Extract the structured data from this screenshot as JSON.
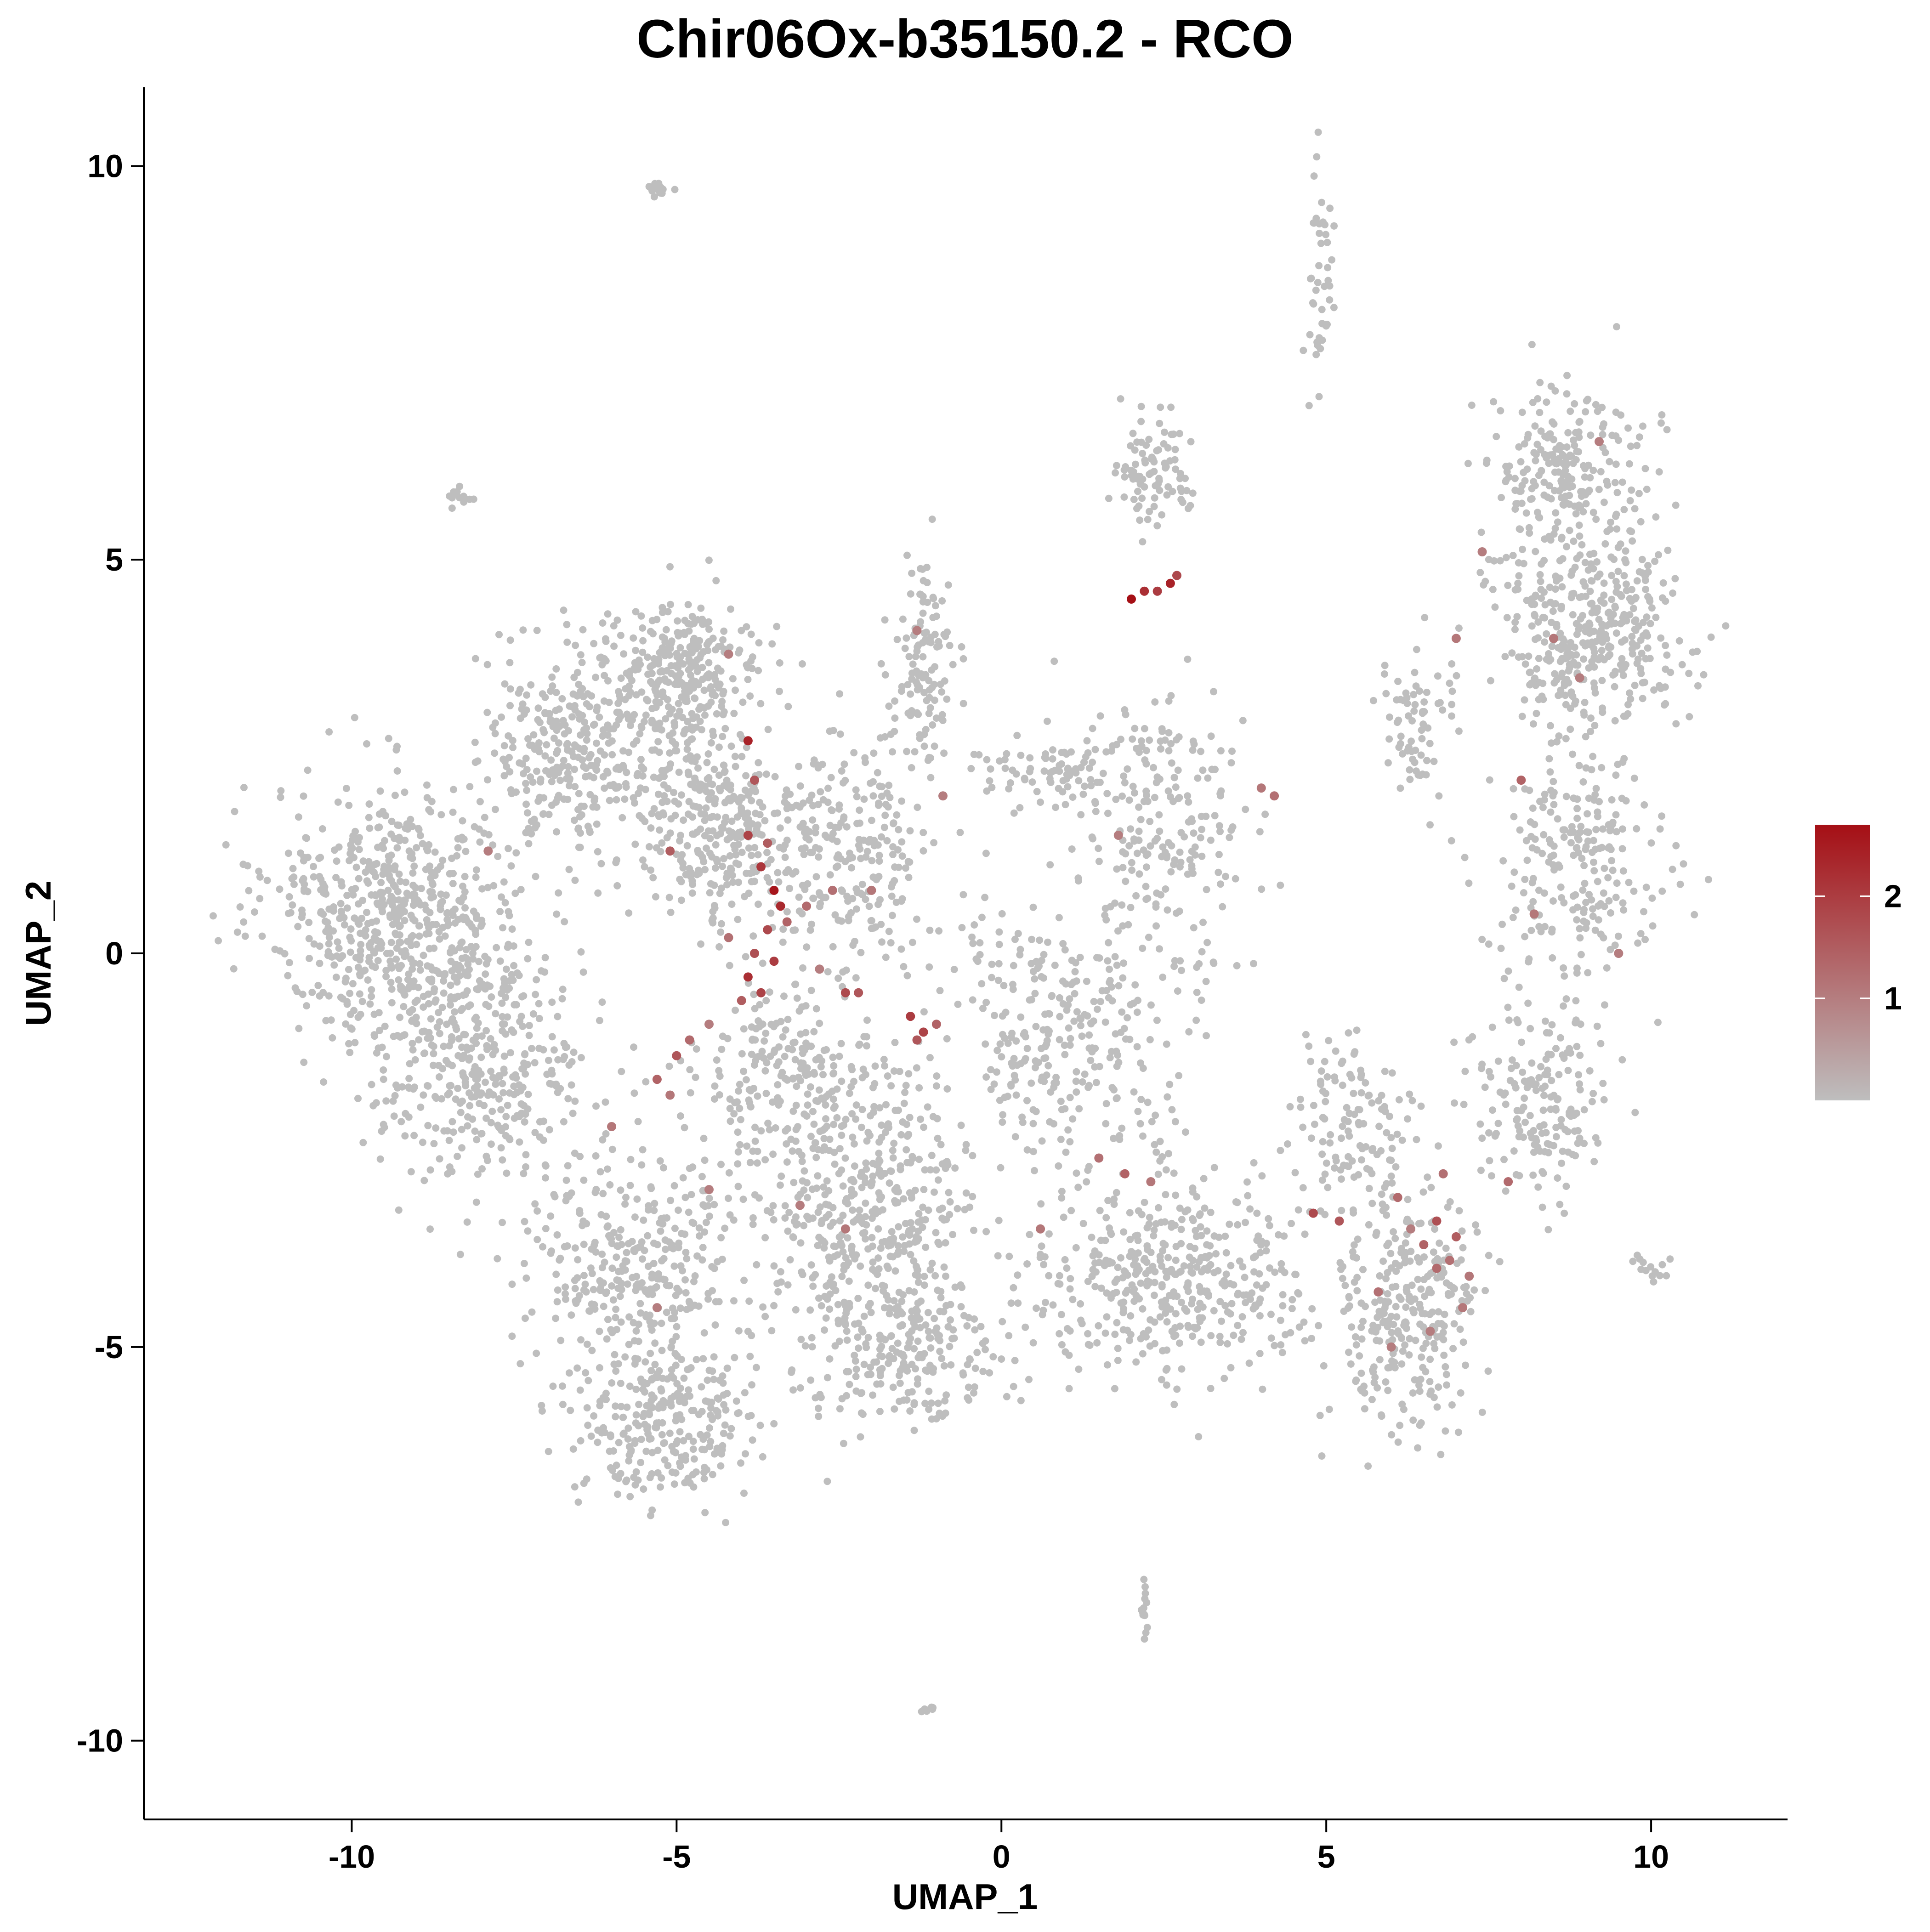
{
  "chart_data": {
    "type": "scatter",
    "title": "Chir06Ox-b35150.2 - RCO",
    "xlabel": "UMAP_1",
    "ylabel": "UMAP_2",
    "xlim": [
      -13.2,
      12.1
    ],
    "ylim": [
      -11.0,
      11.0
    ],
    "xticks": [
      -10,
      -5,
      0,
      5,
      10
    ],
    "yticks": [
      -10,
      -5,
      0,
      5,
      10
    ],
    "xtick_labels": [
      "-10",
      "-5",
      "0",
      "5",
      "10"
    ],
    "ytick_labels": [
      "-10",
      "-5",
      "0",
      "5",
      "10"
    ],
    "grid": false,
    "point_color_low": "#bebebe",
    "point_color_high": "#a50f15",
    "legend": {
      "type": "colorbar",
      "placement": "right",
      "range": [
        0,
        2.7
      ],
      "ticks": [
        1,
        2
      ],
      "tick_labels": [
        "1",
        "2"
      ]
    },
    "series": [
      {
        "kind": "clusters_background",
        "value": 0,
        "clusters": [
          {
            "center": [
              -9.3,
              0.5
            ],
            "spread": [
              1.3,
              1.1
            ],
            "count": 600
          },
          {
            "center": [
              -8.0,
              -1.4
            ],
            "spread": [
              1.1,
              1.0
            ],
            "count": 380
          },
          {
            "center": [
              -6.6,
              2.6
            ],
            "spread": [
              0.9,
              0.9
            ],
            "count": 320
          },
          {
            "center": [
              -4.9,
              3.5
            ],
            "spread": [
              0.8,
              0.6
            ],
            "count": 300
          },
          {
            "center": [
              -4.4,
              1.6
            ],
            "spread": [
              0.9,
              0.9
            ],
            "count": 300
          },
          {
            "center": [
              -2.4,
              1.2
            ],
            "spread": [
              0.9,
              1.0
            ],
            "count": 240
          },
          {
            "center": [
              -1.2,
              3.6
            ],
            "spread": [
              0.35,
              0.9
            ],
            "count": 120
          },
          {
            "center": [
              -3.2,
              -1.5
            ],
            "spread": [
              1.0,
              0.7
            ],
            "count": 220
          },
          {
            "center": [
              -5.6,
              -3.9
            ],
            "spread": [
              1.1,
              1.1
            ],
            "count": 360
          },
          {
            "center": [
              -5.2,
              -6.0
            ],
            "spread": [
              0.9,
              0.7
            ],
            "count": 260
          },
          {
            "center": [
              -2.0,
              -3.3
            ],
            "spread": [
              1.1,
              1.0
            ],
            "count": 420
          },
          {
            "center": [
              -1.5,
              -5.0
            ],
            "spread": [
              1.0,
              0.6
            ],
            "count": 220
          },
          {
            "center": [
              1.0,
              -1.0
            ],
            "spread": [
              1.3,
              1.1
            ],
            "count": 300
          },
          {
            "center": [
              2.6,
              -4.1
            ],
            "spread": [
              1.5,
              0.8
            ],
            "count": 440
          },
          {
            "center": [
              2.6,
              1.5
            ],
            "spread": [
              0.8,
              1.2
            ],
            "count": 200
          },
          {
            "center": [
              0.8,
              2.3
            ],
            "spread": [
              0.9,
              0.3
            ],
            "count": 90
          },
          {
            "center": [
              2.4,
              6.1
            ],
            "spread": [
              0.4,
              0.5
            ],
            "count": 90
          },
          {
            "center": [
              6.3,
              -4.6
            ],
            "spread": [
              0.7,
              1.0
            ],
            "count": 280
          },
          {
            "center": [
              5.4,
              -2.2
            ],
            "spread": [
              0.6,
              0.8
            ],
            "count": 130
          },
          {
            "center": [
              8.7,
              6.1
            ],
            "spread": [
              0.8,
              0.8
            ],
            "count": 240
          },
          {
            "center": [
              9.0,
              4.0
            ],
            "spread": [
              1.0,
              0.8
            ],
            "count": 380
          },
          {
            "center": [
              8.9,
              1.2
            ],
            "spread": [
              0.9,
              1.0
            ],
            "count": 220
          },
          {
            "center": [
              8.3,
              -1.8
            ],
            "spread": [
              0.7,
              0.9
            ],
            "count": 180
          },
          {
            "center": [
              6.3,
              2.8
            ],
            "spread": [
              0.4,
              0.6
            ],
            "count": 70
          },
          {
            "center": [
              -5.3,
              9.7
            ],
            "spread": [
              0.1,
              0.07
            ],
            "count": 18
          },
          {
            "center": [
              -8.4,
              5.8
            ],
            "spread": [
              0.15,
              0.08
            ],
            "count": 14
          },
          {
            "center": [
              4.9,
              8.6
            ],
            "spread": [
              0.15,
              0.8
            ],
            "count": 45
          },
          {
            "center": [
              10.0,
              -4.0
            ],
            "spread": [
              0.2,
              0.15
            ],
            "count": 14
          },
          {
            "center": [
              2.2,
              -8.4
            ],
            "spread": [
              0.05,
              0.2
            ],
            "count": 14
          },
          {
            "center": [
              -1.1,
              -9.6
            ],
            "spread": [
              0.07,
              0.04
            ],
            "count": 8
          },
          {
            "center": [
              -10.8,
              0.9
            ],
            "spread": [
              0.2,
              0.3
            ],
            "count": 14
          }
        ]
      },
      {
        "kind": "expressing_cells",
        "points": [
          [
            -3.9,
            2.7,
            2.4
          ],
          [
            -3.8,
            2.2,
            1.6
          ],
          [
            -3.9,
            1.5,
            1.9
          ],
          [
            -3.7,
            1.1,
            2.1
          ],
          [
            -3.5,
            0.8,
            2.6
          ],
          [
            -3.4,
            0.6,
            2.3
          ],
          [
            -3.6,
            0.3,
            1.8
          ],
          [
            -3.8,
            0.0,
            1.7
          ],
          [
            -3.9,
            -0.3,
            2.2
          ],
          [
            -3.7,
            -0.5,
            1.9
          ],
          [
            -4.0,
            -0.6,
            1.5
          ],
          [
            -3.5,
            -0.1,
            2.0
          ],
          [
            -3.3,
            0.4,
            1.4
          ],
          [
            -4.2,
            0.2,
            1.2
          ],
          [
            -3.6,
            1.4,
            1.5
          ],
          [
            -4.5,
            -0.9,
            1.0
          ],
          [
            -4.8,
            -1.1,
            1.3
          ],
          [
            -5.0,
            -1.3,
            1.6
          ],
          [
            -5.3,
            -1.6,
            1.4
          ],
          [
            -5.1,
            -1.8,
            1.1
          ],
          [
            -2.4,
            -0.5,
            1.8
          ],
          [
            -2.2,
            -0.5,
            1.6
          ],
          [
            -1.4,
            -0.8,
            2.0
          ],
          [
            -1.2,
            -1.0,
            1.9
          ],
          [
            -1.0,
            -0.9,
            1.4
          ],
          [
            -1.3,
            -1.1,
            1.6
          ],
          [
            -2.8,
            -0.2,
            1.0
          ],
          [
            -2.0,
            0.8,
            1.1
          ],
          [
            2.0,
            4.5,
            2.7
          ],
          [
            2.2,
            4.6,
            2.2
          ],
          [
            2.4,
            4.6,
            2.0
          ],
          [
            2.6,
            4.7,
            2.4
          ],
          [
            2.7,
            4.8,
            1.8
          ],
          [
            -5.1,
            1.3,
            1.5
          ],
          [
            -3.0,
            0.6,
            1.3
          ],
          [
            -2.6,
            0.8,
            1.2
          ],
          [
            1.5,
            -2.6,
            1.2
          ],
          [
            1.9,
            -2.8,
            1.4
          ],
          [
            2.3,
            -2.9,
            1.1
          ],
          [
            4.8,
            -3.3,
            1.8
          ],
          [
            5.2,
            -3.4,
            1.6
          ],
          [
            6.1,
            -3.1,
            1.3
          ],
          [
            6.7,
            -3.4,
            1.7
          ],
          [
            7.0,
            -3.6,
            1.5
          ],
          [
            6.5,
            -3.7,
            1.4
          ],
          [
            6.9,
            -3.9,
            1.2
          ],
          [
            6.7,
            -4.0,
            1.3
          ],
          [
            7.2,
            -4.1,
            1.1
          ],
          [
            6.3,
            -3.5,
            1.0
          ],
          [
            7.8,
            -2.9,
            1.3
          ],
          [
            6.8,
            -2.8,
            1.2
          ],
          [
            8.0,
            2.2,
            1.4
          ],
          [
            8.5,
            4.0,
            1.1
          ],
          [
            8.9,
            3.5,
            1.0
          ],
          [
            9.2,
            6.5,
            1.0
          ],
          [
            7.0,
            4.0,
            1.1
          ],
          [
            7.4,
            5.1,
            1.0
          ],
          [
            9.5,
            0.0,
            1.0
          ],
          [
            8.2,
            0.5,
            1.1
          ],
          [
            -0.9,
            2.0,
            1.0
          ],
          [
            -4.2,
            3.8,
            1.0
          ],
          [
            -2.4,
            -3.5,
            1.1
          ],
          [
            -4.5,
            -3.0,
            1.0
          ],
          [
            -6.0,
            -2.2,
            1.1
          ],
          [
            -5.3,
            -4.5,
            1.0
          ],
          [
            -7.9,
            1.3,
            1.0
          ],
          [
            4.2,
            2.0,
            1.2
          ],
          [
            4.0,
            2.1,
            1.1
          ],
          [
            1.8,
            1.5,
            1.0
          ],
          [
            -1.3,
            4.1,
            1.0
          ],
          [
            -3.1,
            -3.2,
            1.0
          ],
          [
            0.6,
            -3.5,
            1.1
          ],
          [
            6.0,
            -5.0,
            1.0
          ],
          [
            7.1,
            -4.5,
            1.1
          ],
          [
            6.6,
            -4.8,
            1.0
          ],
          [
            5.8,
            -4.3,
            1.2
          ]
        ]
      }
    ]
  }
}
